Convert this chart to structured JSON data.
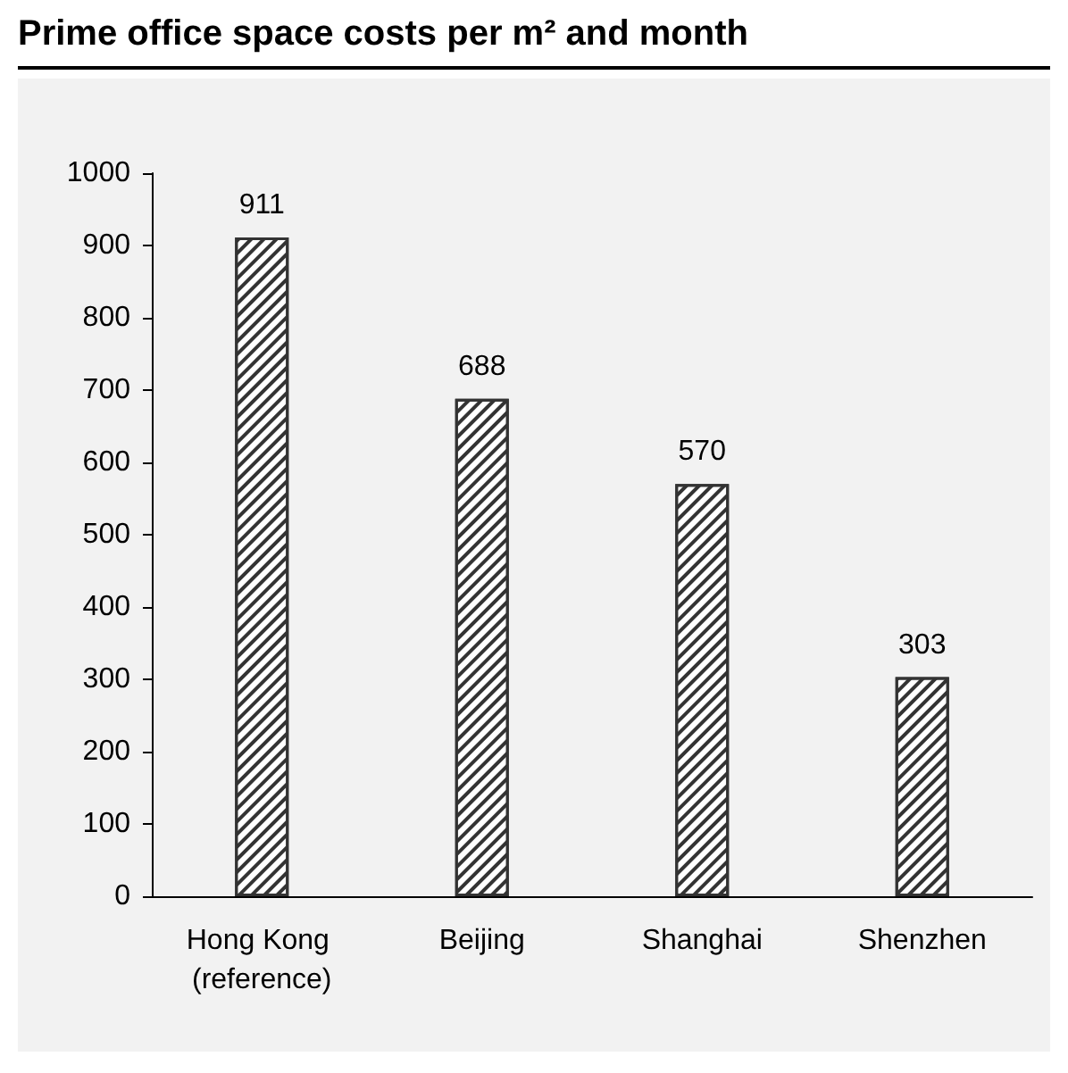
{
  "chart_data": {
    "type": "bar",
    "title": "Prime office space costs per m² and month",
    "categories": [
      "Hong Kong (reference)",
      "Beijing",
      "Shanghai",
      "Shenzhen"
    ],
    "values": [
      911,
      688,
      570,
      303
    ],
    "color": "#333333",
    "ylim": [
      0,
      1000
    ],
    "yticks": [
      0,
      100,
      200,
      300,
      400,
      500,
      600,
      700,
      800,
      900,
      1000
    ],
    "grid": false,
    "data_labels": true
  }
}
